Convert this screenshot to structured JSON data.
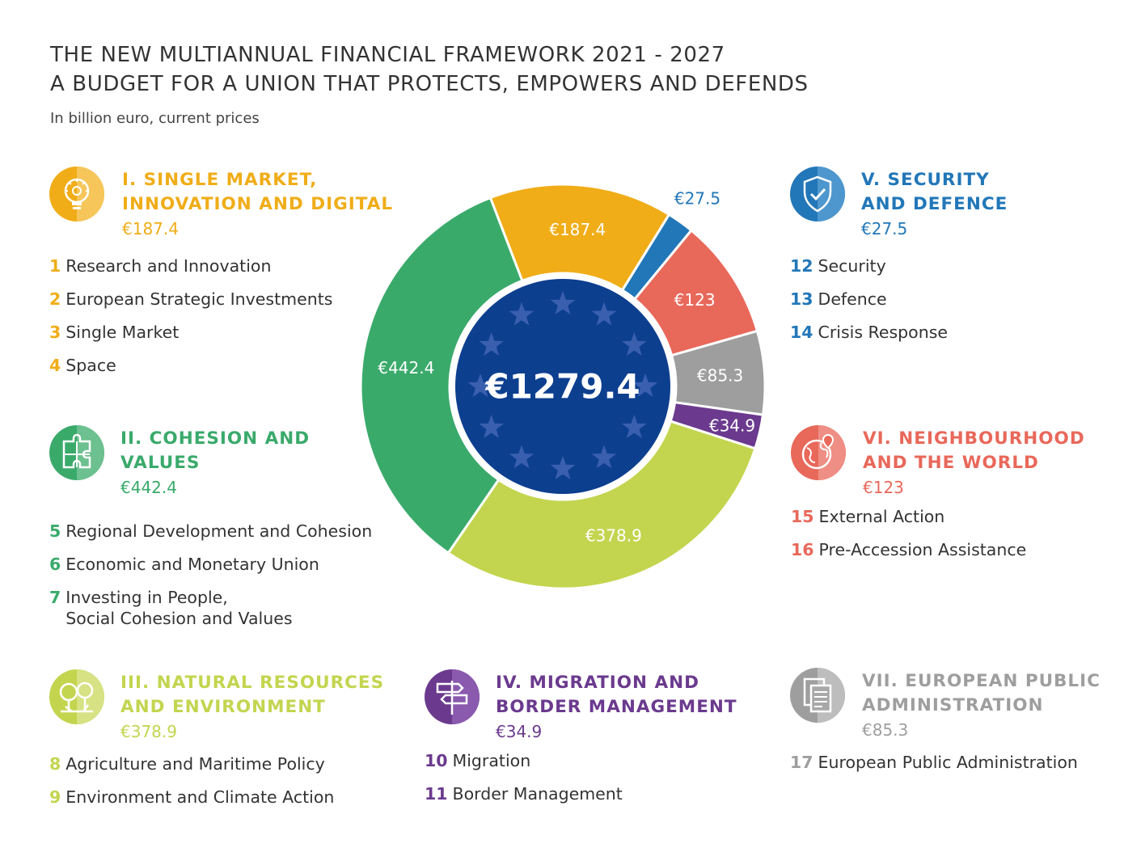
{
  "title_line1": "THE NEW MULTIANNUAL FINANCIAL FRAMEWORK 2021 - 2027",
  "title_line2": "A BUDGET FOR A UNION THAT PROTECTS, EMPOWERS AND DEFENDS",
  "subtitle": "In billion euro, current prices",
  "headings": [
    {
      "id": "I",
      "name_line1": "I. SINGLE MARKET,",
      "name_line2": "INNOVATION AND DIGITAL",
      "value": "€187.4",
      "color": "#F0AD18",
      "icon": "lightbulb-icon",
      "items": [
        {
          "num": "1",
          "label": "Research and Innovation"
        },
        {
          "num": "2",
          "label": "European Strategic Investments"
        },
        {
          "num": "3",
          "label": "Single Market"
        },
        {
          "num": "4",
          "label": "Space"
        }
      ]
    },
    {
      "id": "II",
      "name_line1": "II. COHESION AND",
      "name_line2": "VALUES",
      "value": "€442.4",
      "color": "#3AAA6B",
      "icon": "puzzle-icon",
      "items": [
        {
          "num": "5",
          "label": "Regional Development and Cohesion"
        },
        {
          "num": "6",
          "label": "Economic and Monetary Union"
        },
        {
          "num": "7",
          "label": "Investing in People,\nSocial Cohesion and Values"
        }
      ]
    },
    {
      "id": "III",
      "name_line1": "III. NATURAL RESOURCES",
      "name_line2": "AND ENVIRONMENT",
      "value": "€378.9",
      "color": "#C3D54F",
      "icon": "trees-icon",
      "items": [
        {
          "num": "8",
          "label": "Agriculture and Maritime Policy"
        },
        {
          "num": "9",
          "label": "Environment and Climate Action"
        }
      ]
    },
    {
      "id": "IV",
      "name_line1": "IV. MIGRATION AND",
      "name_line2": "BORDER MANAGEMENT",
      "value": "€34.9",
      "color": "#6B3A8E",
      "icon": "signpost-icon",
      "items": [
        {
          "num": "10",
          "label": "Migration"
        },
        {
          "num": "11",
          "label": "Border Management"
        }
      ]
    },
    {
      "id": "V",
      "name_line1": "V. SECURITY",
      "name_line2": "AND DEFENCE",
      "value": "€27.5",
      "color": "#2277B8",
      "icon": "shield-icon",
      "items": [
        {
          "num": "12",
          "label": "Security"
        },
        {
          "num": "13",
          "label": "Defence"
        },
        {
          "num": "14",
          "label": "Crisis Response"
        }
      ]
    },
    {
      "id": "VI",
      "name_line1": "VI. NEIGHBOURHOOD",
      "name_line2": "AND THE WORLD",
      "value": "€123",
      "color": "#E8685A",
      "icon": "globe-icon",
      "items": [
        {
          "num": "15",
          "label": "External Action"
        },
        {
          "num": "16",
          "label": "Pre-Accession Assistance"
        }
      ]
    },
    {
      "id": "VII",
      "name_line1": "VII. EUROPEAN PUBLIC",
      "name_line2": "ADMINISTRATION",
      "value": "€85.3",
      "color": "#9E9E9E",
      "icon": "documents-icon",
      "items": [
        {
          "num": "17",
          "label": "European Public Administration"
        }
      ]
    }
  ],
  "chart_data": {
    "type": "pie",
    "total_label": "€1279.4",
    "center_color": "#0D3F8F",
    "star_color": "#3A5FAF",
    "slices": [
      {
        "label": "€187.4",
        "value": 187.4,
        "color": "#F0AD18"
      },
      {
        "label": "€27.5",
        "value": 27.5,
        "color": "#2277B8"
      },
      {
        "label": "€123",
        "value": 123,
        "color": "#E8685A"
      },
      {
        "label": "€85.3",
        "value": 85.3,
        "color": "#9E9E9E"
      },
      {
        "label": "€34.9",
        "value": 34.9,
        "color": "#6B3A8E"
      },
      {
        "label": "€378.9",
        "value": 378.9,
        "color": "#C3D54F"
      },
      {
        "label": "€442.4",
        "value": 442.4,
        "color": "#3AAA6B"
      }
    ]
  }
}
